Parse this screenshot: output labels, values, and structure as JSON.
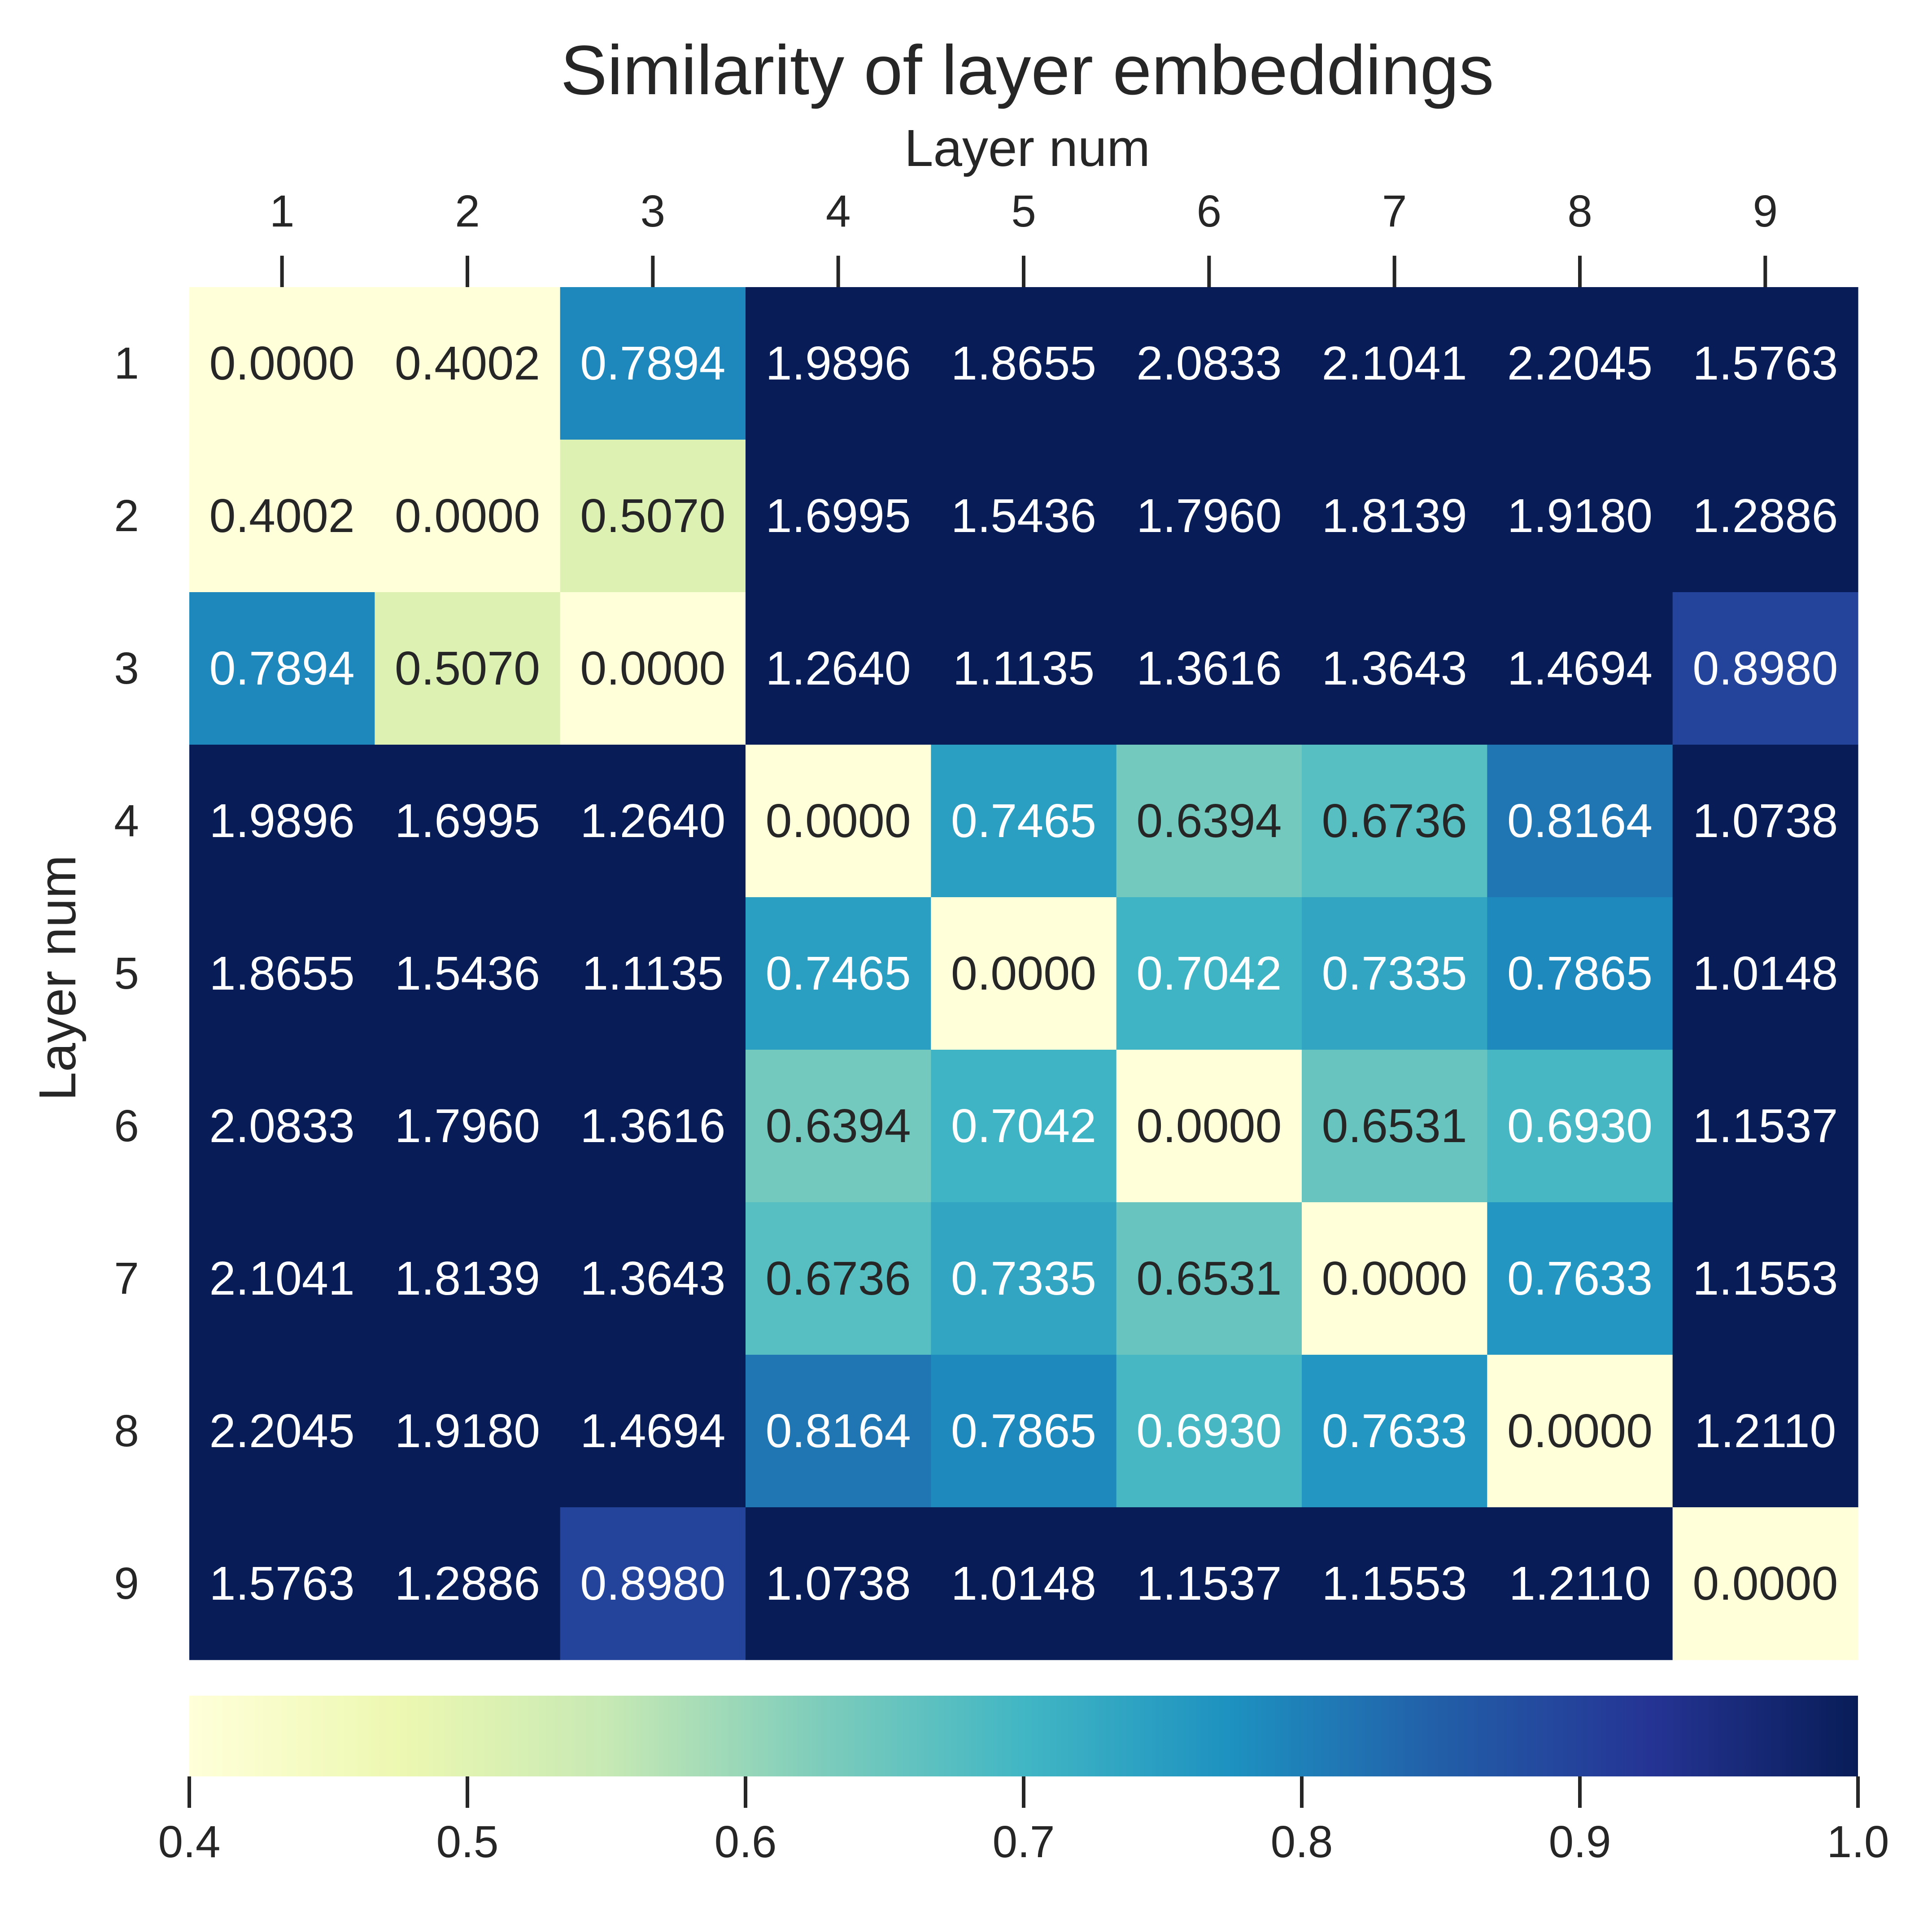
{
  "chart_data": {
    "type": "heatmap",
    "title": "Similarity of layer embeddings",
    "xlabel": "Layer num",
    "ylabel": "Layer num",
    "x_categories": [
      "1",
      "2",
      "3",
      "4",
      "5",
      "6",
      "7",
      "8",
      "9"
    ],
    "y_categories": [
      "1",
      "2",
      "3",
      "4",
      "5",
      "6",
      "7",
      "8",
      "9"
    ],
    "values": [
      [
        0.0,
        0.4002,
        0.7894,
        1.9896,
        1.8655,
        2.0833,
        2.1041,
        2.2045,
        1.5763
      ],
      [
        0.4002,
        0.0,
        0.507,
        1.6995,
        1.5436,
        1.796,
        1.8139,
        1.918,
        1.2886
      ],
      [
        0.7894,
        0.507,
        0.0,
        1.264,
        1.1135,
        1.3616,
        1.3643,
        1.4694,
        0.898
      ],
      [
        1.9896,
        1.6995,
        1.264,
        0.0,
        0.7465,
        0.6394,
        0.6736,
        0.8164,
        1.0738
      ],
      [
        1.8655,
        1.5436,
        1.1135,
        0.7465,
        0.0,
        0.7042,
        0.7335,
        0.7865,
        1.0148
      ],
      [
        2.0833,
        1.796,
        1.3616,
        0.6394,
        0.7042,
        0.0,
        0.6531,
        0.693,
        1.1537
      ],
      [
        2.1041,
        1.8139,
        1.3643,
        0.6736,
        0.7335,
        0.6531,
        0.0,
        0.7633,
        1.1553
      ],
      [
        2.2045,
        1.918,
        1.4694,
        0.8164,
        0.7865,
        0.693,
        0.7633,
        0.0,
        1.211
      ],
      [
        1.5763,
        1.2886,
        0.898,
        1.0738,
        1.0148,
        1.1537,
        1.1553,
        1.211,
        0.0
      ]
    ],
    "value_format": "4 decimals",
    "colormap": "YlGnBu",
    "colorbar": {
      "orientation": "horizontal",
      "placement": "bottom",
      "range": [
        0.4,
        1.0
      ],
      "ticks": [
        "0.4",
        "0.5",
        "0.6",
        "0.7",
        "0.8",
        "0.9",
        "1.0"
      ]
    },
    "x_axis_position": "top",
    "grid": false
  }
}
